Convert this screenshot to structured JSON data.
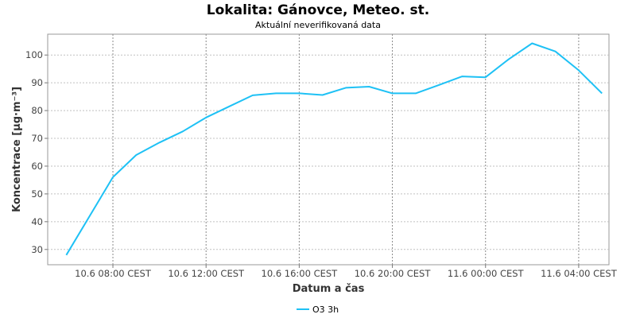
{
  "chart_data": {
    "type": "line",
    "title": "Lokalita: Gánovce, Meteo. st.",
    "subtitle": "Aktuální neverifikovaná data",
    "xlabel": "Datum a čas",
    "ylabel": "Koncentrace [µg·m⁻³]",
    "x_tick_labels": [
      "10.6 08:00 CEST",
      "10.6 12:00 CEST",
      "10.6 16:00 CEST",
      "10.6 20:00 CEST",
      "11.6 00:00 CEST",
      "11.6 04:00 CEST"
    ],
    "x_tick_hours": [
      8,
      12,
      16,
      20,
      24,
      28
    ],
    "xlim_hours": [
      5.2,
      29.3
    ],
    "y_ticks": [
      30,
      40,
      50,
      60,
      70,
      80,
      90,
      100
    ],
    "ylim": [
      24.5,
      107.5
    ],
    "grid": true,
    "legend_position": "bottom-center",
    "series": [
      {
        "name": "O3 3h",
        "color": "#1ec1f5",
        "x_hours": [
          6,
          7,
          8,
          9,
          10,
          11,
          12,
          13,
          14,
          15,
          16,
          17,
          18,
          19,
          20,
          21,
          22,
          23,
          24,
          25,
          26,
          27,
          28,
          29
        ],
        "values": [
          28,
          42,
          56,
          64,
          68.5,
          72.5,
          77.5,
          81.5,
          85.5,
          86.2,
          86.2,
          85.6,
          88.2,
          88.6,
          86.2,
          86.2,
          89.2,
          92.3,
          92,
          98.5,
          104.2,
          101.3,
          94.5,
          86.2
        ]
      }
    ]
  }
}
